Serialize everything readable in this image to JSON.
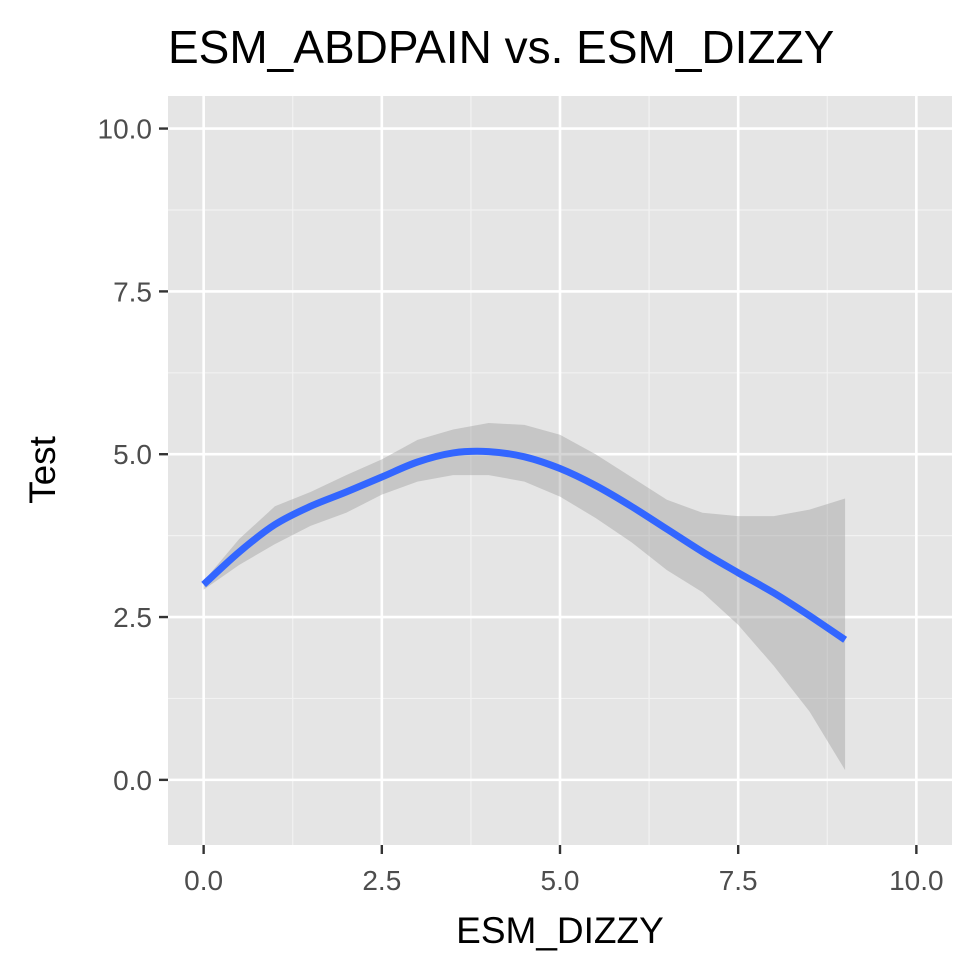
{
  "chart_data": {
    "type": "line",
    "title": "ESM_ABDPAIN vs. ESM_DIZZY",
    "xlabel": "ESM_DIZZY",
    "ylabel": "Test",
    "xlim": [
      -0.5,
      10.5
    ],
    "ylim": [
      -1.0,
      10.5
    ],
    "x_ticks": [
      0.0,
      2.5,
      5.0,
      7.5,
      10.0
    ],
    "x_tick_labels": [
      "0.0",
      "2.5",
      "5.0",
      "7.5",
      "10.0"
    ],
    "y_ticks": [
      0.0,
      2.5,
      5.0,
      7.5,
      10.0
    ],
    "y_tick_labels": [
      "0.0",
      "2.5",
      "5.0",
      "7.5",
      "10.0"
    ],
    "grid": true,
    "legend": "none",
    "series": [
      {
        "kind": "smooth",
        "color": "#3366FF",
        "band_color": "#999999",
        "x": [
          0.0,
          0.5,
          1.0,
          1.5,
          2.0,
          2.5,
          3.0,
          3.5,
          4.0,
          4.5,
          5.0,
          5.5,
          6.0,
          6.5,
          7.0,
          7.5,
          8.0,
          8.5,
          9.0
        ],
        "y": [
          3.0,
          3.5,
          3.92,
          4.2,
          4.42,
          4.65,
          4.88,
          5.02,
          5.04,
          4.96,
          4.78,
          4.52,
          4.2,
          3.85,
          3.5,
          3.18,
          2.87,
          2.52,
          2.15
        ],
        "upper": [
          3.05,
          3.7,
          4.2,
          4.42,
          4.68,
          4.92,
          5.22,
          5.38,
          5.48,
          5.45,
          5.3,
          5.0,
          4.65,
          4.3,
          4.1,
          4.05,
          4.05,
          4.15,
          4.32
        ],
        "lower": [
          2.92,
          3.3,
          3.62,
          3.9,
          4.1,
          4.38,
          4.58,
          4.68,
          4.68,
          4.58,
          4.35,
          4.02,
          3.65,
          3.22,
          2.88,
          2.38,
          1.75,
          1.05,
          0.15
        ]
      }
    ]
  }
}
